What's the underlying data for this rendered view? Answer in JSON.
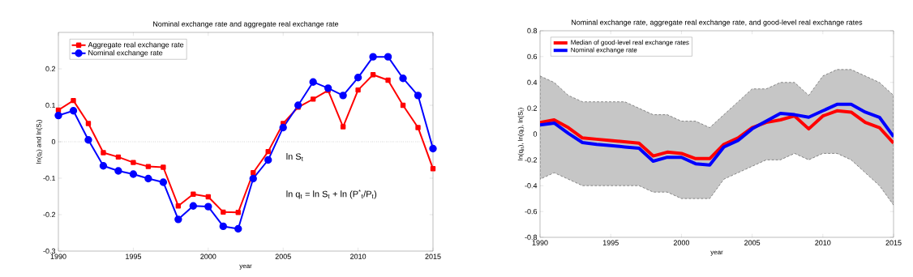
{
  "chart_data": [
    {
      "type": "line",
      "title": "Nominal exchange rate and aggregate real exchange rate",
      "xlabel": "year",
      "ylabel": "ln(q$_{t}$) and ln(S$_{t}$)",
      "x": [
        1990,
        1991,
        1992,
        1993,
        1994,
        1995,
        1996,
        1997,
        1998,
        1999,
        2000,
        2001,
        2002,
        2003,
        2004,
        2005,
        2006,
        2007,
        2008,
        2009,
        2010,
        2011,
        2012,
        2013,
        2014,
        2015
      ],
      "series": [
        {
          "name": "Aggregate real exchange rate",
          "color": "#ff0000",
          "marker": "square",
          "values": [
            0.087,
            0.113,
            0.05,
            -0.03,
            -0.042,
            -0.057,
            -0.068,
            -0.07,
            -0.176,
            -0.144,
            -0.151,
            -0.193,
            -0.194,
            -0.085,
            -0.027,
            0.05,
            0.095,
            0.117,
            0.141,
            0.041,
            0.142,
            0.184,
            0.169,
            0.1,
            0.039,
            -0.074
          ]
        },
        {
          "name": "Nominal exchange rate",
          "color": "#0000ff",
          "marker": "circle",
          "values": [
            0.072,
            0.085,
            0.005,
            -0.066,
            -0.08,
            -0.089,
            -0.101,
            -0.111,
            -0.213,
            -0.176,
            -0.178,
            -0.232,
            -0.239,
            -0.101,
            -0.05,
            0.039,
            0.1,
            0.164,
            0.147,
            0.127,
            0.176,
            0.233,
            0.233,
            0.174,
            0.127,
            -0.019
          ]
        }
      ],
      "xlim": [
        1990,
        2015
      ],
      "xticks": [
        1990,
        1995,
        2000,
        2005,
        2010,
        2015
      ],
      "ylim": [
        -0.3,
        0.3
      ],
      "yticks": [
        -0.3,
        -0.2,
        -0.1,
        0,
        0.1,
        0.2
      ],
      "ref_lines": [
        {
          "axis": "y",
          "value": 0,
          "color": "#000000",
          "line_style": "dotted"
        }
      ],
      "annotations": [
        "ln S$_{t}$",
        "ln q$_{t}$ = ln S$_{t}$ + ln (P$^{*}$$_{t}$/P$_{t}$)"
      ],
      "legend": "top left",
      "line_style": "solid"
    },
    {
      "type": "line",
      "title": "Nominal exchange rate, aggregate real exchange rate, and good-level real exchange rates",
      "xlabel": "year",
      "ylabel": "ln(q$_{it}$), ln(q$_{t}$), ln(S$_{t}$)",
      "x": [
        1990,
        1991,
        1992,
        1993,
        1994,
        1995,
        1996,
        1997,
        1998,
        1999,
        2000,
        2001,
        2002,
        2003,
        2004,
        2005,
        2006,
        2007,
        2008,
        2009,
        2010,
        2011,
        2012,
        2013,
        2014,
        2015
      ],
      "series": [
        {
          "name": "Median of good-level real exchange rates",
          "color": "#ff0000",
          "values": [
            0.09,
            0.11,
            0.05,
            -0.03,
            -0.04,
            -0.05,
            -0.06,
            -0.07,
            -0.17,
            -0.14,
            -0.15,
            -0.19,
            -0.19,
            -0.08,
            -0.03,
            0.05,
            0.09,
            0.11,
            0.14,
            0.04,
            0.14,
            0.18,
            0.17,
            0.09,
            0.05,
            -0.07
          ],
          "lower": [
            -0.35,
            -0.3,
            -0.35,
            -0.4,
            -0.4,
            -0.4,
            -0.4,
            -0.4,
            -0.45,
            -0.45,
            -0.5,
            -0.5,
            -0.5,
            -0.35,
            -0.3,
            -0.25,
            -0.2,
            -0.2,
            -0.15,
            -0.2,
            -0.15,
            -0.15,
            -0.2,
            -0.3,
            -0.4,
            -0.55
          ],
          "upper": [
            0.45,
            0.4,
            0.3,
            0.25,
            0.25,
            0.25,
            0.25,
            0.2,
            0.15,
            0.15,
            0.1,
            0.1,
            0.05,
            0.15,
            0.25,
            0.35,
            0.35,
            0.4,
            0.4,
            0.3,
            0.45,
            0.5,
            0.5,
            0.45,
            0.4,
            0.3
          ]
        },
        {
          "name": "Nominal exchange rate",
          "color": "#0000ff",
          "values": [
            0.07,
            0.085,
            0.005,
            -0.066,
            -0.08,
            -0.089,
            -0.1,
            -0.11,
            -0.21,
            -0.18,
            -0.18,
            -0.23,
            -0.24,
            -0.1,
            -0.05,
            0.04,
            0.1,
            0.16,
            0.15,
            0.13,
            0.18,
            0.23,
            0.23,
            0.17,
            0.13,
            -0.02
          ]
        }
      ],
      "xlim": [
        1990,
        2015
      ],
      "xticks": [
        1990,
        1995,
        2000,
        2005,
        2010,
        2015
      ],
      "ylim": [
        -0.8,
        0.8
      ],
      "yticks": [
        -0.8,
        -0.6,
        -0.4,
        -0.2,
        0,
        0.2,
        0.4,
        0.6,
        0.8
      ],
      "legend": "top left",
      "marker": "none",
      "line_style": "solid"
    }
  ]
}
